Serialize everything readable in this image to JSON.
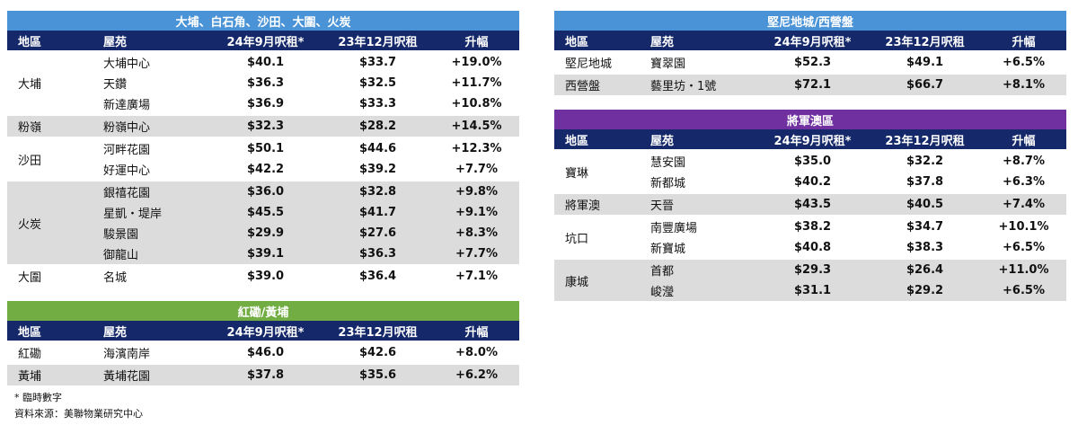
{
  "tables": [
    {
      "title": "大埔、白石角、沙田、大圍、火炭",
      "color": "#4a93d6",
      "headers": [
        "地區",
        "屋苑",
        "24年9月呎租*",
        "23年12月呎租",
        "升幅"
      ],
      "groups": [
        {
          "district": "大埔",
          "rows": [
            [
              "大埔中心",
              "$40.1",
              "$33.7",
              "+19.0%"
            ],
            [
              "天鑽",
              "$36.3",
              "$32.5",
              "+11.7%"
            ],
            [
              "新達廣場",
              "$36.9",
              "$33.3",
              "+10.8%"
            ]
          ]
        },
        {
          "district": "粉嶺",
          "rows": [
            [
              "粉嶺中心",
              "$32.3",
              "$28.2",
              "+14.5%"
            ]
          ]
        },
        {
          "district": "沙田",
          "rows": [
            [
              "河畔花園",
              "$50.1",
              "$44.6",
              "+12.3%"
            ],
            [
              "好運中心",
              "$42.2",
              "$39.2",
              "+7.7%"
            ]
          ]
        },
        {
          "district": "火炭",
          "rows": [
            [
              "銀禧花園",
              "$36.0",
              "$32.8",
              "+9.8%"
            ],
            [
              "星凱・堤岸",
              "$45.5",
              "$41.7",
              "+9.1%"
            ],
            [
              "駿景園",
              "$29.9",
              "$27.6",
              "+8.3%"
            ],
            [
              "御龍山",
              "$39.1",
              "$36.3",
              "+7.7%"
            ]
          ]
        },
        {
          "district": "大圍",
          "rows": [
            [
              "名城",
              "$39.0",
              "$36.4",
              "+7.1%"
            ]
          ]
        }
      ]
    },
    {
      "title": "紅磡/黃埔",
      "color": "#72ad43",
      "headers": [
        "地區",
        "屋苑",
        "24年9月呎租*",
        "23年12月呎租",
        "升幅"
      ],
      "groups": [
        {
          "district": "紅磡",
          "rows": [
            [
              "海濱南岸",
              "$46.0",
              "$42.6",
              "+8.0%"
            ]
          ]
        },
        {
          "district": "黃埔",
          "rows": [
            [
              "黃埔花園",
              "$37.8",
              "$35.6",
              "+6.2%"
            ]
          ]
        }
      ]
    },
    {
      "title": "堅尼地城/西營盤",
      "color": "#4a93d6",
      "headers": [
        "地區",
        "屋苑",
        "24年9月呎租*",
        "23年12月呎租",
        "升幅"
      ],
      "groups": [
        {
          "district": "堅尼地城",
          "rows": [
            [
              "寶翠園",
              "$52.3",
              "$49.1",
              "+6.5%"
            ]
          ]
        },
        {
          "district": "西營盤",
          "rows": [
            [
              "藝里坊・1號",
              "$72.1",
              "$66.7",
              "+8.1%"
            ]
          ]
        }
      ]
    },
    {
      "title": "將軍澳區",
      "color": "#7030a0",
      "headers": [
        "地區",
        "屋苑",
        "24年9月呎租*",
        "23年12月呎租",
        "升幅"
      ],
      "groups": [
        {
          "district": "寶琳",
          "rows": [
            [
              "慧安園",
              "$35.0",
              "$32.2",
              "+8.7%"
            ],
            [
              "新都城",
              "$40.2",
              "$37.8",
              "+6.3%"
            ]
          ]
        },
        {
          "district": "將軍澳",
          "rows": [
            [
              "天晉",
              "$43.5",
              "$40.5",
              "+7.4%"
            ]
          ]
        },
        {
          "district": "坑口",
          "rows": [
            [
              "南豐廣場",
              "$38.2",
              "$34.7",
              "+10.1%"
            ],
            [
              "新寶城",
              "$40.8",
              "$38.3",
              "+6.5%"
            ]
          ]
        },
        {
          "district": "康城",
          "rows": [
            [
              "首都",
              "$29.3",
              "$26.4",
              "+11.0%"
            ],
            [
              "峻瀅",
              "$31.1",
              "$29.2",
              "+6.5%"
            ]
          ]
        }
      ]
    }
  ],
  "footnotes": [
    "* 臨時數字",
    "資料來源：美聯物業研究中心"
  ]
}
